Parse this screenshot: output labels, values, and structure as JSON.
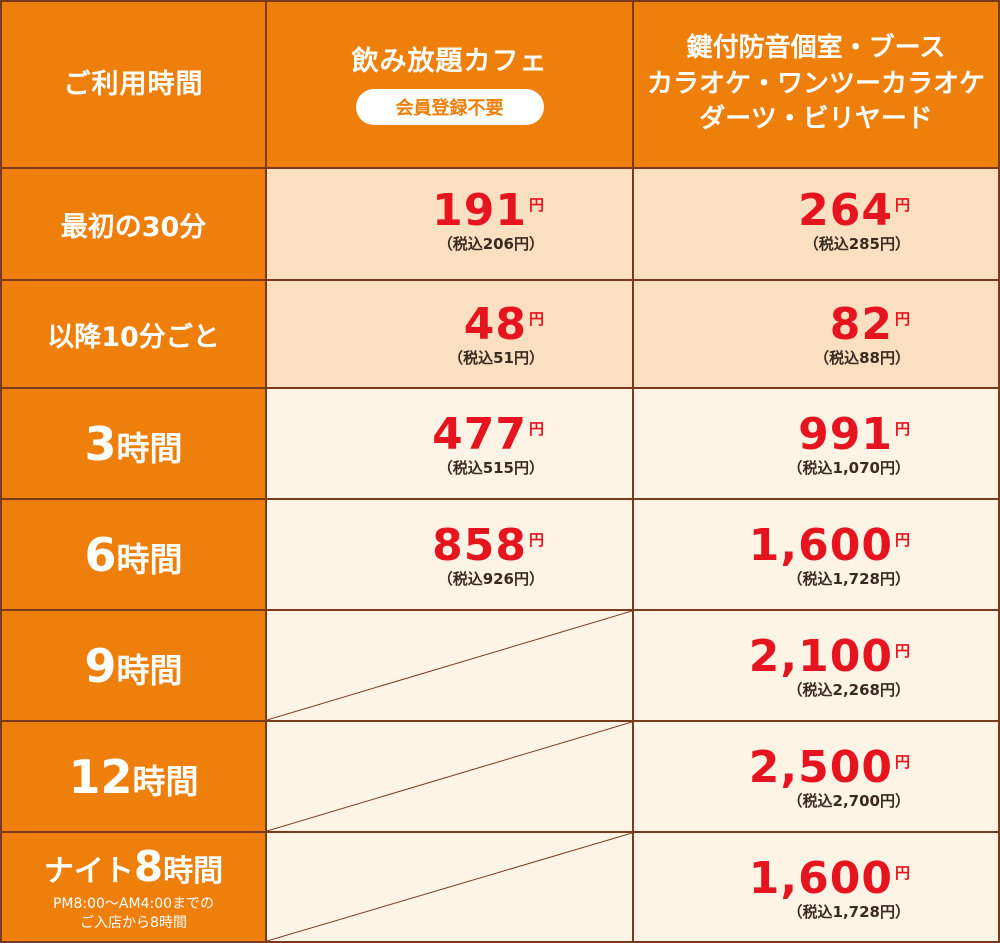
{
  "header": {
    "label_col": "ご利用時間",
    "cafe": {
      "title": "飲み放題カフェ",
      "badge": "会員登録不要"
    },
    "room": {
      "line1": "鍵付防音個室・ブース",
      "line2": "カラオケ・ワンツーカラオケ",
      "line3": "ダーツ・ビリヤード"
    }
  },
  "rows": [
    {
      "label": "最初の30分",
      "cafe": {
        "price": "191",
        "unit": "円",
        "tax": "（税込206円）"
      },
      "room": {
        "price": "264",
        "unit": "円",
        "tax": "（税込285円）"
      }
    },
    {
      "label": "以降10分ごと",
      "cafe": {
        "price": "48",
        "unit": "円",
        "tax": "（税込51円）"
      },
      "room": {
        "price": "82",
        "unit": "円",
        "tax": "（税込88円）"
      }
    },
    {
      "label_num": "3",
      "label_suffix": "時間",
      "cafe": {
        "price": "477",
        "unit": "円",
        "tax": "（税込515円）"
      },
      "room": {
        "price": "991",
        "unit": "円",
        "tax": "（税込1,070円）"
      }
    },
    {
      "label_num": "6",
      "label_suffix": "時間",
      "cafe": {
        "price": "858",
        "unit": "円",
        "tax": "（税込926円）"
      },
      "room": {
        "price": "1,600",
        "unit": "円",
        "tax": "（税込1,728円）"
      }
    },
    {
      "label_num": "9",
      "label_suffix": "時間",
      "room": {
        "price": "2,100",
        "unit": "円",
        "tax": "（税込2,268円）"
      }
    },
    {
      "label_num": "12",
      "label_suffix": "時間",
      "room": {
        "price": "2,500",
        "unit": "円",
        "tax": "（税込2,700円）"
      }
    },
    {
      "label_prefix": "ナイト",
      "label_num": "8",
      "label_suffix": "時間",
      "note1": "PM8:00〜AM4:00までの",
      "note2": "ご入店から8時間",
      "room": {
        "price": "1,600",
        "unit": "円",
        "tax": "（税込1,728円）"
      }
    }
  ],
  "colors": {
    "orange": "#ee7f0a",
    "peach": "#fbdfc1",
    "cream": "#fdf4e6",
    "red": "#e5141f",
    "border": "#7a3a1e"
  }
}
